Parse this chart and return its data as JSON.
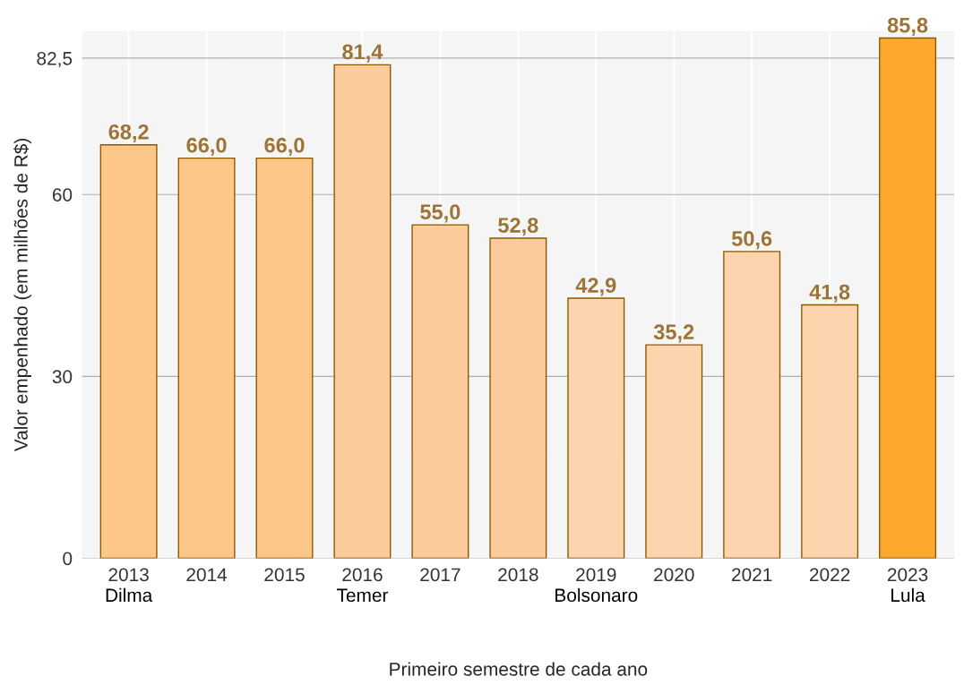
{
  "chart_data": {
    "type": "bar",
    "xlabel": "Primeiro semestre de cada ano",
    "ylabel": "Valor empenhado (em milhões de R$)",
    "categories": [
      "2013",
      "2014",
      "2015",
      "2016",
      "2017",
      "2018",
      "2019",
      "2020",
      "2021",
      "2022",
      "2023"
    ],
    "values": [
      68.2,
      66.0,
      66.0,
      81.4,
      55.0,
      52.8,
      42.9,
      35.2,
      50.6,
      41.8,
      85.8
    ],
    "value_labels": [
      "68,2",
      "66,0",
      "66,0",
      "81,4",
      "55,0",
      "52,8",
      "42,9",
      "35,2",
      "50,6",
      "41,8",
      "85,8"
    ],
    "colors": [
      "#fdc78a",
      "#fdc78a",
      "#fdc78a",
      "#fccb9c",
      "#fccb9c",
      "#fccb9c",
      "#fdd4ae",
      "#fdd4ae",
      "#fdd4ae",
      "#fdd4ae",
      "#ffa82e"
    ],
    "ylim": [
      0,
      87
    ],
    "yticks": [
      0,
      30,
      60,
      {
        "value": 82.5,
        "label": "82,5"
      }
    ],
    "grid": true,
    "annotations": [
      "Dilma",
      "Temer",
      "Bolsonaro",
      "Lula"
    ]
  }
}
